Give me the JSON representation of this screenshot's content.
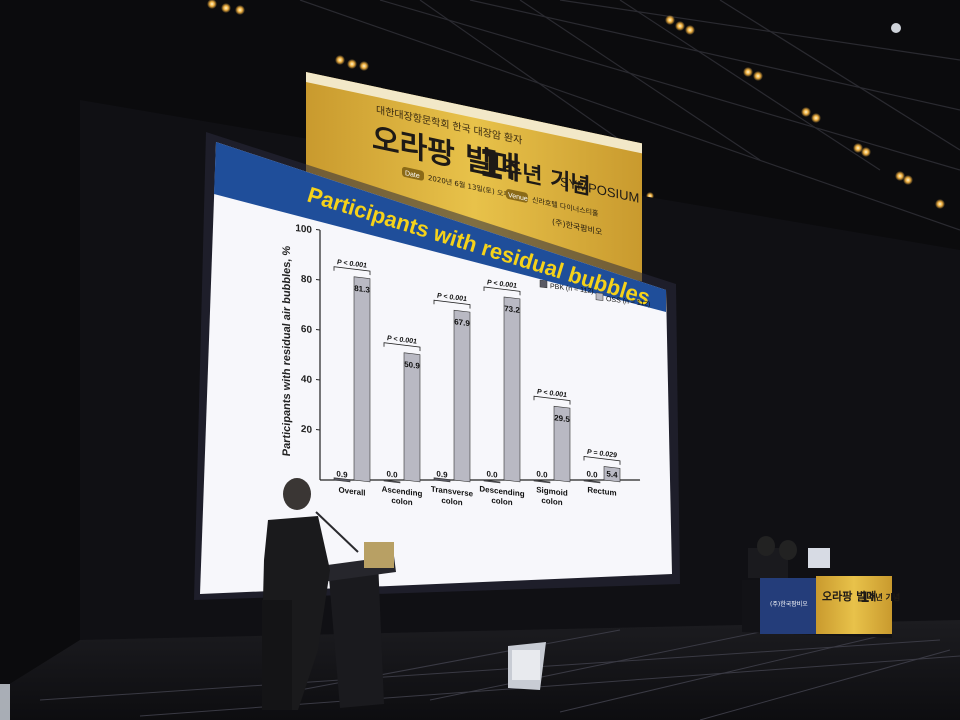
{
  "banner": {
    "top_text": "대한대장항문학회 한국 대장암 환자",
    "title": "오라팡 발매",
    "title_number": "1",
    "title_suffix": "주년 기념",
    "title_en": "SYMPOSIUM",
    "date_tag": "Date",
    "date_text": "2020년 6월 13일(토) 오후",
    "venue_tag": "Venue",
    "venue_text": "신라호텔 다이너스티홀",
    "sponsor": "(주)한국팜비오"
  },
  "slide": {
    "title": "Participants with residual bubbles"
  },
  "table_sign": {
    "text": "오라팡 발매",
    "number": "1",
    "suffix": "주년 기념",
    "logo_text": "(주)한국팜비오"
  },
  "colors": {
    "slide_header": "#1f4e9a",
    "slide_title_text": "#f5d21a",
    "bar_pbk": "#5a5a64",
    "bar_oss": "#b9b9c3",
    "banner_gold": "#e0b53a",
    "stage_dark": "#0b0b0d"
  },
  "chart_data": {
    "type": "bar",
    "ylabel": "Participants with residual air bubbles, %",
    "ylim": [
      0,
      100
    ],
    "yticks": [
      20,
      40,
      60,
      80,
      100
    ],
    "categories": [
      "Overall",
      "Ascending colon",
      "Transverse colon",
      "Descending colon",
      "Sigmoid colon",
      "Rectum"
    ],
    "series": [
      {
        "name": "PBK (n = 112)",
        "values": [
          0.9,
          0.0,
          0.9,
          0.0,
          0.0,
          0.0
        ]
      },
      {
        "name": "OSS (n = 112)",
        "values": [
          81.3,
          50.9,
          67.9,
          73.2,
          29.5,
          5.4
        ]
      }
    ],
    "pvalues": [
      "P < 0.001",
      "P < 0.001",
      "P < 0.001",
      "P < 0.001",
      "P < 0.001",
      "P = 0.029"
    ],
    "legend": "top-right"
  }
}
